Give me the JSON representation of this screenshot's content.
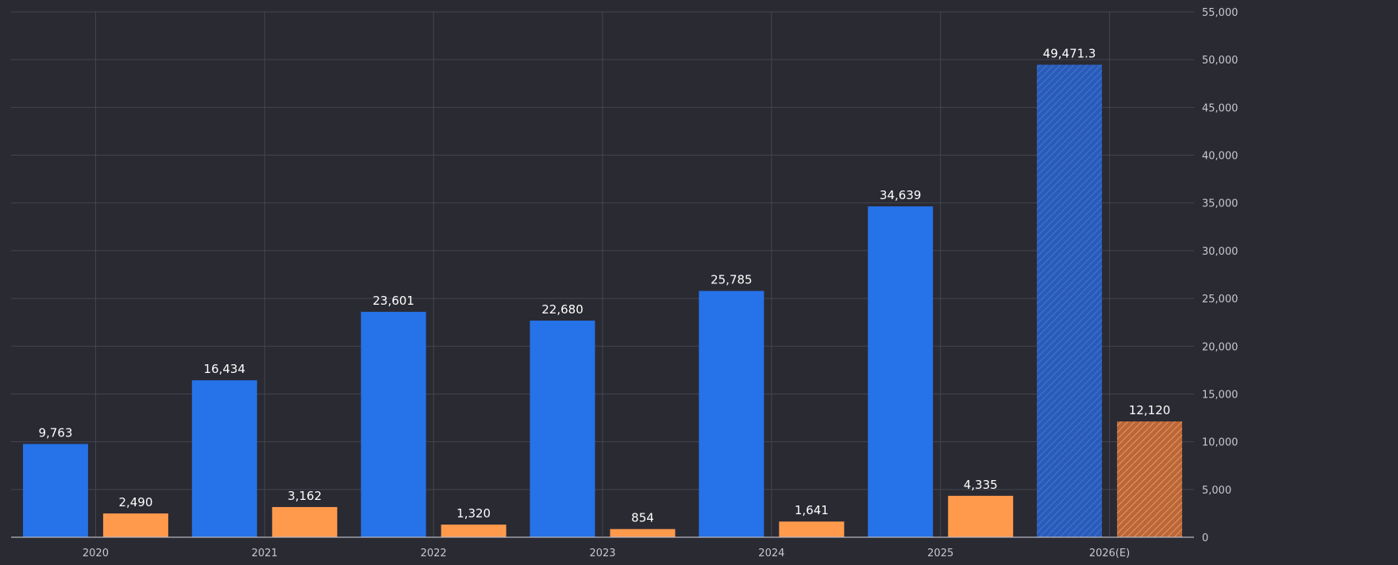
{
  "chart_data": {
    "type": "bar",
    "categories": [
      "2020",
      "2021",
      "2022",
      "2023",
      "2024",
      "2025",
      "2026(E)"
    ],
    "series": [
      {
        "values": [
          9763,
          16434,
          23601,
          22680,
          25785,
          34639,
          49471.3
        ],
        "labels": [
          "9,763",
          "16,434",
          "23,601",
          "22,680",
          "25,785",
          "34,639",
          "49,471.3"
        ],
        "color": "#2672e8",
        "estimate_color": "#2a5bb8"
      },
      {
        "values": [
          2490,
          3162,
          1320,
          854,
          1641,
          4335,
          12120
        ],
        "labels": [
          "2,490",
          "3,162",
          "1,320",
          "854",
          "1,641",
          "4,335",
          "12,120"
        ],
        "color": "#ff9a4d",
        "estimate_color": "#c97340"
      }
    ],
    "estimated_categories": [
      "2026(E)"
    ],
    "ylim": [
      0,
      55000
    ],
    "y_ticks": [
      "0",
      "5,000",
      "10,000",
      "15,000",
      "20,000",
      "25,000",
      "30,000",
      "35,000",
      "40,000",
      "45,000",
      "50,000",
      "55,000"
    ],
    "y_axis_side": "right",
    "grid": true,
    "title": "",
    "xlabel": "",
    "ylabel": ""
  }
}
